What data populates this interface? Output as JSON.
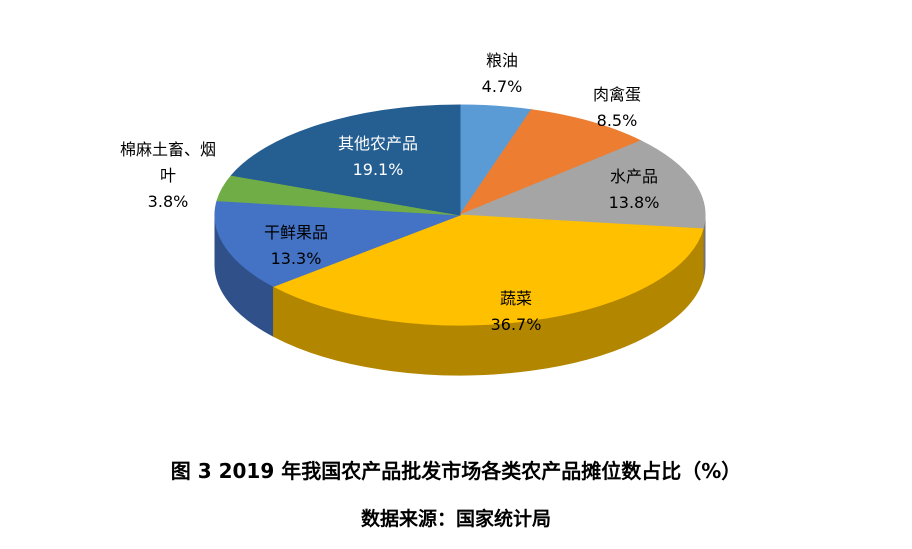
{
  "chart_data": {
    "type": "pie",
    "style": "3d",
    "unit": "%",
    "title": "图 3  2019 年我国农产品批发市场各类农产品摊位数占比（%）",
    "source": "数据来源：国家统计局",
    "start_angle_deg": 0,
    "direction": "clockwise",
    "legend_position": "none",
    "slices": [
      {
        "label": "粮油",
        "value": 4.7,
        "pct_label": "4.7%",
        "color": "#5B9BD5"
      },
      {
        "label": "肉禽蛋",
        "value": 8.5,
        "pct_label": "8.5%",
        "color": "#ED7D31"
      },
      {
        "label": "水产品",
        "value": 13.8,
        "pct_label": "13.8%",
        "color": "#A5A5A5"
      },
      {
        "label": "蔬菜",
        "value": 36.7,
        "pct_label": "36.7%",
        "color": "#FFC000"
      },
      {
        "label": "干鲜果品",
        "value": 13.3,
        "pct_label": "13.3%",
        "color": "#4472C4"
      },
      {
        "label": "棉麻土畜、烟叶",
        "value": 3.8,
        "pct_label": "3.8%",
        "color": "#70AD47"
      },
      {
        "label": "其他农产品",
        "value": 19.1,
        "pct_label": "19.1%",
        "color": "#255E91"
      }
    ]
  }
}
